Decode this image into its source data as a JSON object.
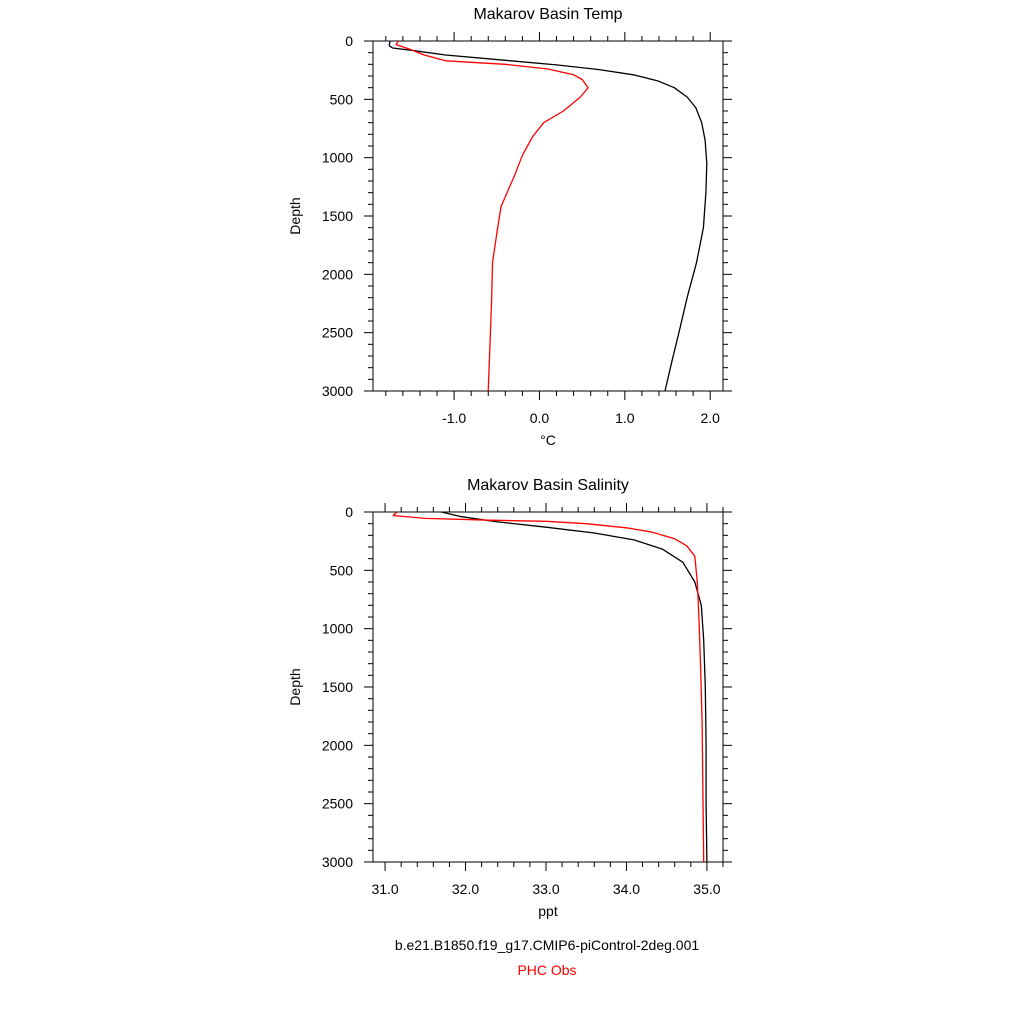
{
  "chart_data": [
    {
      "type": "line",
      "title": "Makarov Basin Temp",
      "xlabel": "°C",
      "ylabel": "Depth",
      "xlim": [
        -1.95,
        2.15
      ],
      "ylim": [
        3000,
        0
      ],
      "y_inverted": true,
      "xticks": [
        -1.0,
        0.0,
        1.0,
        2.0
      ],
      "xtick_labels": [
        "-1.0",
        "0.0",
        "1.0",
        "2.0"
      ],
      "yticks": [
        0,
        500,
        1000,
        1500,
        2000,
        2500,
        3000
      ],
      "ytick_labels": [
        "0",
        "500",
        "1000",
        "1500",
        "2000",
        "2500",
        "3000"
      ],
      "grid": false,
      "series": [
        {
          "name": "b.e21.B1850.f19_g17.CMIP6-piControl-2deg.001",
          "color": "#000000",
          "points": [
            [
              -1.75,
              0
            ],
            [
              -1.76,
              40
            ],
            [
              -1.72,
              60
            ],
            [
              -1.5,
              80
            ],
            [
              -1.1,
              120
            ],
            [
              -0.4,
              165
            ],
            [
              0.2,
              205
            ],
            [
              0.7,
              245
            ],
            [
              1.1,
              290
            ],
            [
              1.38,
              340
            ],
            [
              1.58,
              400
            ],
            [
              1.73,
              480
            ],
            [
              1.83,
              570
            ],
            [
              1.9,
              700
            ],
            [
              1.94,
              850
            ],
            [
              1.96,
              1050
            ],
            [
              1.95,
              1300
            ],
            [
              1.92,
              1600
            ],
            [
              1.84,
              1900
            ],
            [
              1.73,
              2200
            ],
            [
              1.65,
              2450
            ],
            [
              1.55,
              2750
            ],
            [
              1.47,
              3000
            ]
          ]
        },
        {
          "name": "PHC Obs",
          "color": "#ff0000",
          "points": [
            [
              -1.65,
              0
            ],
            [
              -1.68,
              30
            ],
            [
              -1.52,
              70
            ],
            [
              -1.35,
              120
            ],
            [
              -1.1,
              170
            ],
            [
              -0.4,
              200
            ],
            [
              0.1,
              240
            ],
            [
              0.4,
              290
            ],
            [
              0.5,
              330
            ],
            [
              0.57,
              400
            ],
            [
              0.48,
              480
            ],
            [
              0.28,
              600
            ],
            [
              0.05,
              700
            ],
            [
              -0.08,
              820
            ],
            [
              -0.2,
              980
            ],
            [
              -0.29,
              1150
            ],
            [
              -0.38,
              1300
            ],
            [
              -0.45,
              1420
            ],
            [
              -0.5,
              1650
            ],
            [
              -0.55,
              1900
            ],
            [
              -0.56,
              2200
            ],
            [
              -0.58,
              2600
            ],
            [
              -0.6,
              3000
            ]
          ]
        }
      ]
    },
    {
      "type": "line",
      "title": "Makarov Basin Salinity",
      "xlabel": "ppt",
      "ylabel": "Depth",
      "xlim": [
        30.85,
        35.2
      ],
      "ylim": [
        3000,
        0
      ],
      "y_inverted": true,
      "xticks": [
        31.0,
        32.0,
        33.0,
        34.0,
        35.0
      ],
      "xtick_labels": [
        "31.0",
        "32.0",
        "33.0",
        "34.0",
        "35.0"
      ],
      "yticks": [
        0,
        500,
        1000,
        1500,
        2000,
        2500,
        3000
      ],
      "ytick_labels": [
        "0",
        "500",
        "1000",
        "1500",
        "2000",
        "2500",
        "3000"
      ],
      "grid": false,
      "series": [
        {
          "name": "b.e21.B1850.f19_g17.CMIP6-piControl-2deg.001",
          "color": "#000000",
          "points": [
            [
              31.7,
              0
            ],
            [
              31.95,
              40
            ],
            [
              32.4,
              85
            ],
            [
              33.0,
              130
            ],
            [
              33.6,
              180
            ],
            [
              34.1,
              240
            ],
            [
              34.45,
              320
            ],
            [
              34.7,
              430
            ],
            [
              34.85,
              600
            ],
            [
              34.93,
              800
            ],
            [
              34.96,
              1100
            ],
            [
              34.98,
              1500
            ],
            [
              34.99,
              2000
            ],
            [
              34.99,
              2500
            ],
            [
              35.0,
              3000
            ]
          ]
        },
        {
          "name": "PHC Obs",
          "color": "#ff0000",
          "points": [
            [
              31.15,
              0
            ],
            [
              31.1,
              30
            ],
            [
              31.5,
              55
            ],
            [
              32.3,
              70
            ],
            [
              33.0,
              80
            ],
            [
              33.5,
              100
            ],
            [
              34.0,
              135
            ],
            [
              34.3,
              170
            ],
            [
              34.6,
              230
            ],
            [
              34.75,
              290
            ],
            [
              34.85,
              380
            ],
            [
              34.88,
              600
            ],
            [
              34.9,
              900
            ],
            [
              34.92,
              1300
            ],
            [
              34.94,
              1800
            ],
            [
              34.95,
              2400
            ],
            [
              34.96,
              3000
            ]
          ]
        }
      ]
    }
  ],
  "legend": {
    "model_label": "b.e21.B1850.f19_g17.CMIP6-piControl-2deg.001",
    "obs_label": "PHC Obs",
    "model_color": "#000000",
    "obs_color": "#ff0000"
  }
}
